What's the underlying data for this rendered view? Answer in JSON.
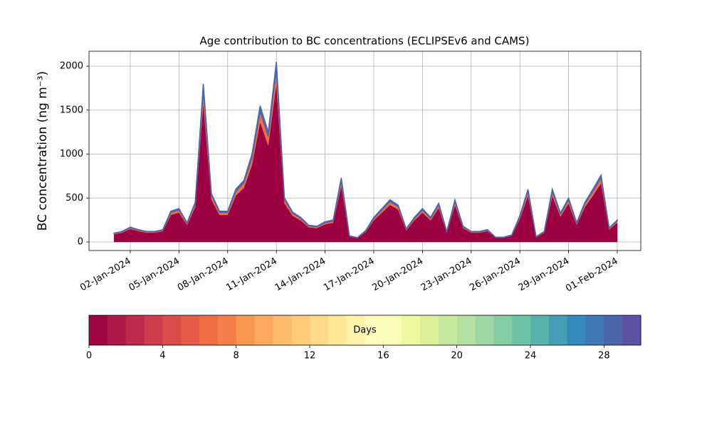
{
  "chart_data": {
    "type": "stacked_area",
    "title": "Age contribution to BC concentrations (ECLIPSEv6 and CAMS)",
    "y_label": "BC concentration (ng m⁻³)",
    "x": [
      "2024-01-01T00:00",
      "2024-01-01T12:00",
      "2024-01-02T00:00",
      "2024-01-02T12:00",
      "2024-01-03T00:00",
      "2024-01-03T12:00",
      "2024-01-04T00:00",
      "2024-01-04T12:00",
      "2024-01-05T00:00",
      "2024-01-05T12:00",
      "2024-01-06T00:00",
      "2024-01-06T12:00",
      "2024-01-07T00:00",
      "2024-01-07T12:00",
      "2024-01-08T00:00",
      "2024-01-08T12:00",
      "2024-01-09T00:00",
      "2024-01-09T12:00",
      "2024-01-10T00:00",
      "2024-01-10T12:00",
      "2024-01-11T00:00",
      "2024-01-11T12:00",
      "2024-01-12T00:00",
      "2024-01-12T12:00",
      "2024-01-13T00:00",
      "2024-01-13T12:00",
      "2024-01-14T00:00",
      "2024-01-14T12:00",
      "2024-01-15T00:00",
      "2024-01-15T12:00",
      "2024-01-16T00:00",
      "2024-01-16T12:00",
      "2024-01-17T00:00",
      "2024-01-17T12:00",
      "2024-01-18T00:00",
      "2024-01-18T12:00",
      "2024-01-19T00:00",
      "2024-01-19T12:00",
      "2024-01-20T00:00",
      "2024-01-20T12:00",
      "2024-01-21T00:00",
      "2024-01-21T12:00",
      "2024-01-22T00:00",
      "2024-01-22T12:00",
      "2024-01-23T00:00",
      "2024-01-23T12:00",
      "2024-01-24T00:00",
      "2024-01-24T12:00",
      "2024-01-25T00:00",
      "2024-01-25T12:00",
      "2024-01-26T00:00",
      "2024-01-26T12:00",
      "2024-01-27T00:00",
      "2024-01-27T12:00",
      "2024-01-28T00:00",
      "2024-01-28T12:00",
      "2024-01-29T00:00",
      "2024-01-29T12:00",
      "2024-01-30T00:00",
      "2024-01-30T12:00",
      "2024-01-31T00:00",
      "2024-01-31T12:00",
      "2024-02-01T00:00"
    ],
    "series": [
      {
        "color": "#9e0142",
        "values": [
          88,
          106,
          150,
          123,
          106,
          106,
          123,
          308,
          334,
          194,
          396,
          1584,
          484,
          308,
          308,
          528,
          616,
          880,
          1364,
          1100,
          1804,
          440,
          299,
          246,
          167,
          158,
          202,
          220,
          642,
          62,
          44,
          114,
          246,
          334,
          422,
          370,
          132,
          246,
          334,
          246,
          387,
          106,
          422,
          158,
          106,
          106,
          123,
          48,
          48,
          70,
          264,
          528,
          53,
          106,
          528,
          290,
          440,
          194,
          396,
          528,
          669,
          141,
          220
        ]
      },
      {
        "color": "#f46d43",
        "values": [
          8,
          10,
          14,
          11,
          10,
          10,
          11,
          28,
          30,
          18,
          36,
          144,
          44,
          28,
          28,
          48,
          56,
          80,
          124,
          100,
          164,
          40,
          27,
          22,
          15,
          14,
          18,
          20,
          58,
          6,
          4,
          10,
          22,
          30,
          38,
          34,
          12,
          22,
          30,
          22,
          35,
          10,
          38,
          14,
          10,
          10,
          11,
          4,
          4,
          6,
          24,
          48,
          5,
          10,
          48,
          26,
          40,
          18,
          36,
          48,
          61,
          13,
          20
        ]
      },
      {
        "color": "#4a66ac",
        "values": [
          4,
          4,
          6,
          6,
          4,
          4,
          6,
          14,
          16,
          8,
          18,
          72,
          22,
          14,
          14,
          24,
          28,
          40,
          62,
          50,
          82,
          20,
          14,
          12,
          8,
          8,
          10,
          10,
          30,
          2,
          2,
          6,
          12,
          16,
          20,
          16,
          6,
          12,
          16,
          12,
          18,
          4,
          20,
          8,
          4,
          4,
          6,
          3,
          3,
          4,
          12,
          24,
          2,
          4,
          24,
          14,
          20,
          8,
          18,
          24,
          30,
          6,
          10
        ]
      }
    ],
    "xlim": [
      "2023-12-30T11:00",
      "2024-02-02T10:48"
    ],
    "xticks": [
      {
        "value": "2024-01-02T00:00",
        "label": "02-Jan-2024"
      },
      {
        "value": "2024-01-05T00:00",
        "label": "05-Jan-2024"
      },
      {
        "value": "2024-01-08T00:00",
        "label": "08-Jan-2024"
      },
      {
        "value": "2024-01-11T00:00",
        "label": "11-Jan-2024"
      },
      {
        "value": "2024-01-14T00:00",
        "label": "14-Jan-2024"
      },
      {
        "value": "2024-01-17T00:00",
        "label": "17-Jan-2024"
      },
      {
        "value": "2024-01-20T00:00",
        "label": "20-Jan-2024"
      },
      {
        "value": "2024-01-23T00:00",
        "label": "23-Jan-2024"
      },
      {
        "value": "2024-01-26T00:00",
        "label": "26-Jan-2024"
      },
      {
        "value": "2024-01-29T00:00",
        "label": "29-Jan-2024"
      },
      {
        "value": "2024-02-01T00:00",
        "label": "01-Feb-2024"
      }
    ],
    "ylim": [
      -97,
      2170
    ],
    "yticks": [
      0,
      500,
      1000,
      1500,
      2000
    ],
    "grid": true,
    "colorbar": {
      "label": "Days",
      "lim": [
        0,
        30
      ],
      "ticks": [
        0,
        4,
        8,
        12,
        16,
        20,
        24,
        28
      ],
      "colors": [
        "#a00543",
        "#ae1a48",
        "#c0294c",
        "#d13b4e",
        "#dc4b4c",
        "#e75a47",
        "#f06c44",
        "#f57f4a",
        "#f99553",
        "#fca95e",
        "#fdbb6b",
        "#fdcb7a",
        "#fed98a",
        "#fee797",
        "#fff2ab",
        "#fffbba",
        "#f8fcb4",
        "#edf8a1",
        "#dcf09a",
        "#c8e99d",
        "#b4e1a1",
        "#9ed7a4",
        "#84cda5",
        "#6cc4a5",
        "#58b2aa",
        "#459db3",
        "#3689bc",
        "#3e78b5",
        "#4c65ab",
        "#5a53a4"
      ]
    }
  }
}
